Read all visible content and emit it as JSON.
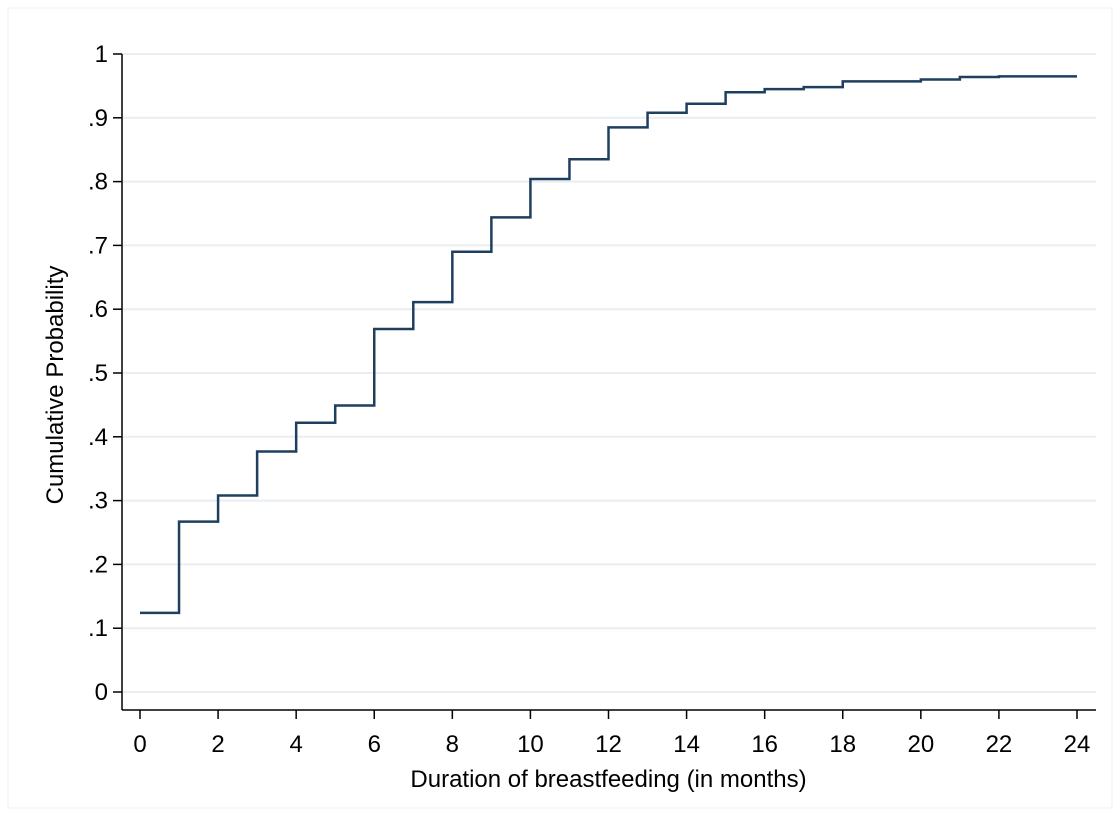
{
  "chart_data": {
    "type": "line",
    "step": true,
    "title": "",
    "xlabel": "Duration of breastfeeding (in months)",
    "ylabel": "Cumulative Probability",
    "xlim": [
      0,
      24
    ],
    "ylim": [
      0,
      1
    ],
    "grid": true,
    "x_ticks": [
      0,
      2,
      4,
      6,
      8,
      10,
      12,
      14,
      16,
      18,
      20,
      22,
      24
    ],
    "y_ticks": [
      0,
      0.1,
      0.2,
      0.3,
      0.4,
      0.5,
      0.6,
      0.7,
      0.8,
      0.9,
      1
    ],
    "x_tick_labels": [
      "0",
      "2",
      "4",
      "6",
      "8",
      "10",
      "12",
      "14",
      "16",
      "18",
      "20",
      "22",
      "24"
    ],
    "y_tick_labels": [
      "0",
      ".1",
      ".2",
      ".3",
      ".4",
      ".5",
      ".6",
      ".7",
      ".8",
      ".9",
      "1"
    ],
    "series": [
      {
        "color": "#1f3f5f",
        "x": [
          0,
          1,
          2,
          3,
          4,
          5,
          6,
          7,
          8,
          9,
          10,
          11,
          12,
          13,
          14,
          15,
          16,
          17,
          18,
          19,
          20,
          21,
          22,
          23,
          24
        ],
        "y": [
          0.124,
          0.267,
          0.308,
          0.377,
          0.422,
          0.449,
          0.569,
          0.611,
          0.69,
          0.744,
          0.804,
          0.835,
          0.885,
          0.908,
          0.922,
          0.94,
          0.945,
          0.948,
          0.957,
          0.957,
          0.96,
          0.964,
          0.965,
          0.965,
          0.965
        ]
      }
    ]
  }
}
